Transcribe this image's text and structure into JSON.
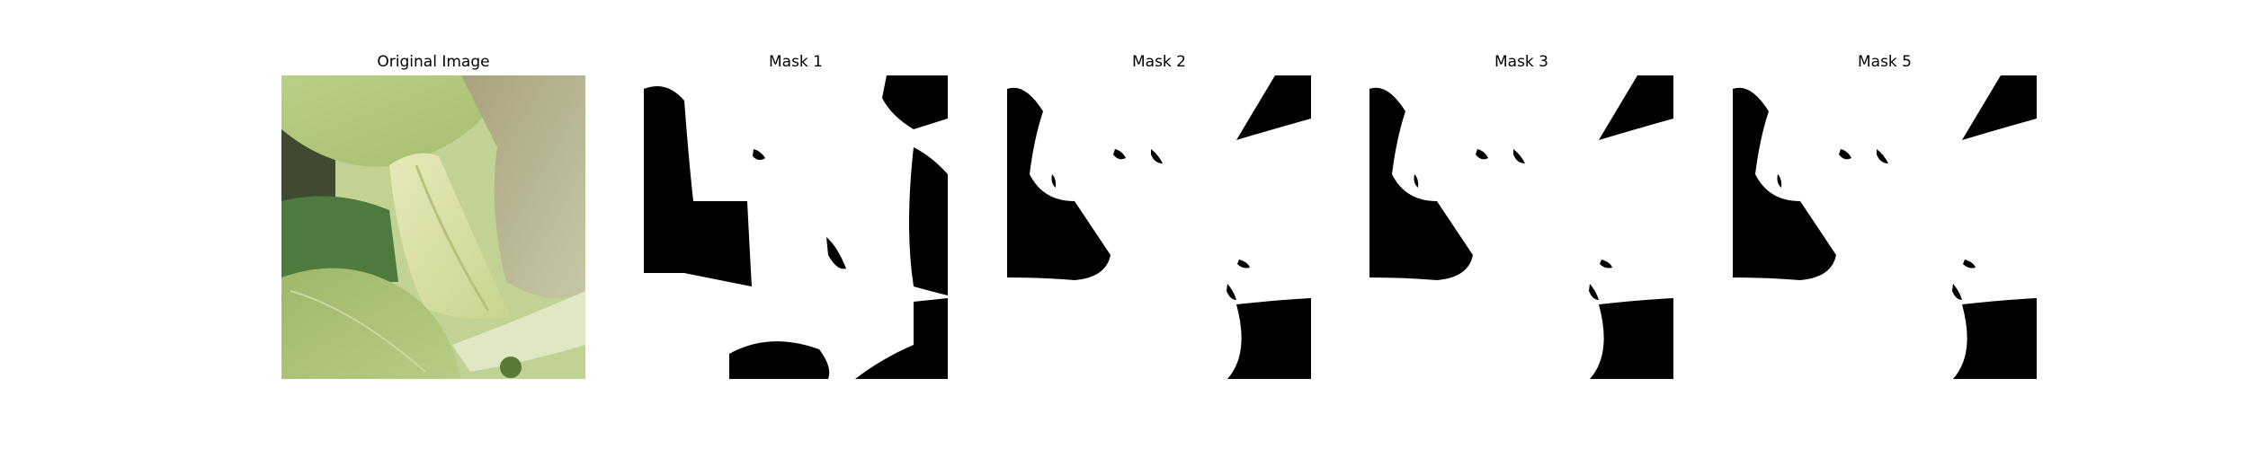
{
  "panels": [
    {
      "title": "Original Image"
    },
    {
      "title": "Mask 1"
    },
    {
      "title": "Mask 2"
    },
    {
      "title": "Mask 3"
    },
    {
      "title": "Mask 5"
    }
  ],
  "colors": {
    "mask_fg": "#ffffff",
    "mask_bg": "#000000"
  }
}
